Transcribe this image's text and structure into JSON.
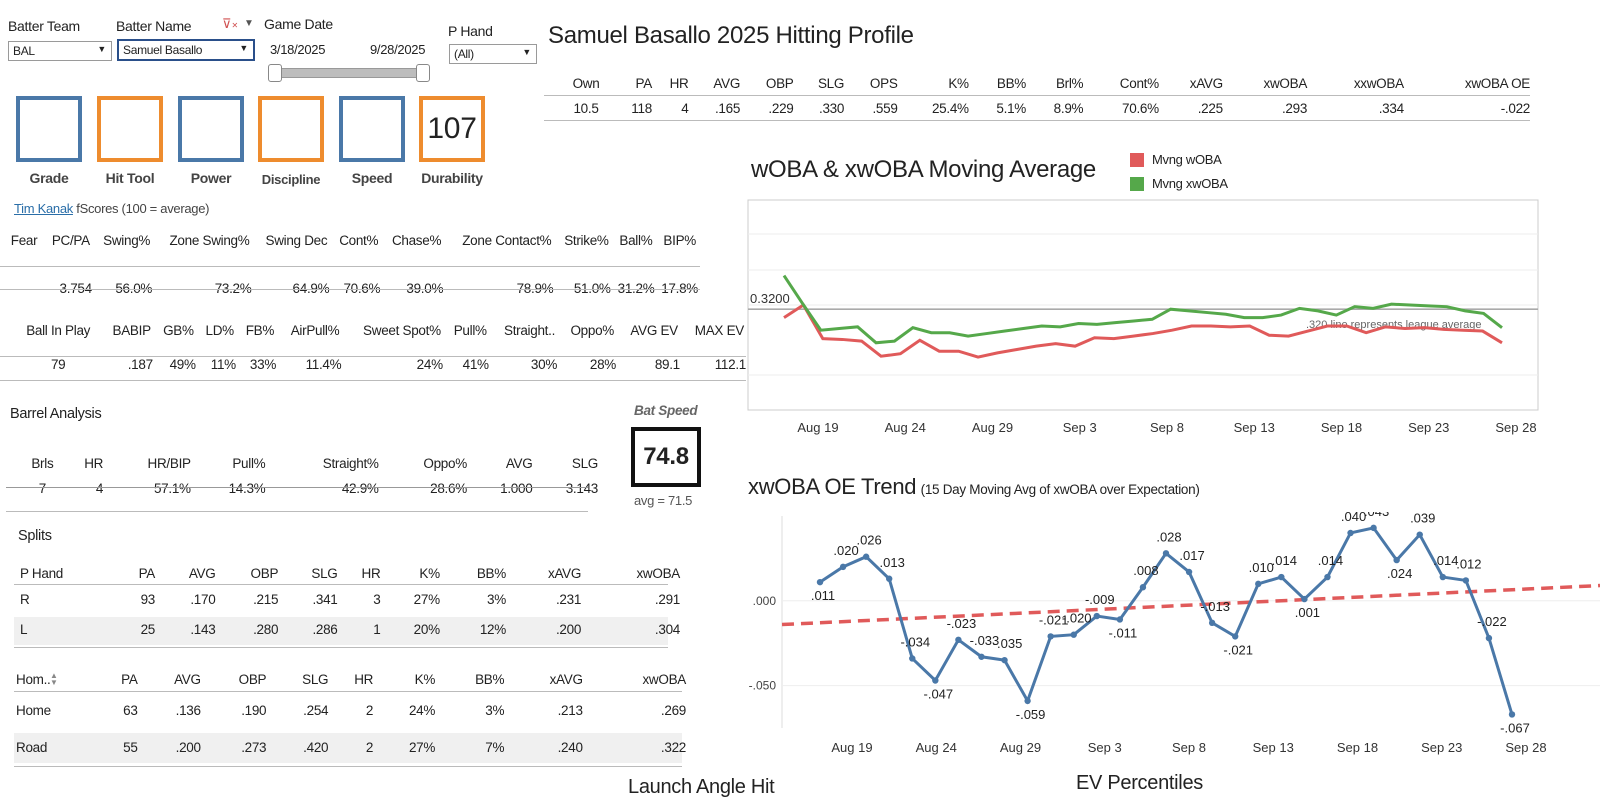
{
  "filters": {
    "batter_team_label": "Batter Team",
    "batter_team_value": "BAL",
    "batter_name_label": "Batter Name",
    "batter_name_value": "Samuel Basallo",
    "game_date_label": "Game Date",
    "date_start": "3/18/2025",
    "date_end": "9/28/2025",
    "p_hand_label": "P Hand",
    "p_hand_value": "(All)",
    "filter_clear_icon": "filter-clear-icon"
  },
  "grade_boxes": [
    {
      "label": "Grade",
      "value": ""
    },
    {
      "label": "Hit Tool",
      "value": ""
    },
    {
      "label": "Power",
      "value": ""
    },
    {
      "label": "Discipline",
      "value": ""
    },
    {
      "label": "Speed",
      "value": ""
    },
    {
      "label": "Durability",
      "value": "107"
    }
  ],
  "profile": {
    "title": "Samuel Basallo 2025 Hitting Profile",
    "headers": [
      "Own",
      "PA",
      "HR",
      "AVG",
      "OBP",
      "SLG",
      "OPS",
      "K%",
      "BB%",
      "Brl%",
      "Cont%",
      "xAVG",
      "xwOBA",
      "xxwOBA",
      "xwOBA OE"
    ],
    "values": [
      "10.5",
      "118",
      "4",
      ".165",
      ".229",
      ".330",
      ".559",
      "25.4%",
      "5.1%",
      "8.9%",
      "70.6%",
      ".225",
      ".293",
      ".334",
      "-.022"
    ]
  },
  "fscores": {
    "link": "Tim Kanak",
    "caption": "fScores (100 = average)",
    "headers": [
      "Fear",
      "PC/PA",
      "Swing%",
      "Zone Swing%",
      "Swing Dec",
      "Cont%",
      "Chase%",
      "Zone Contact%",
      "Strike%",
      "Ball%",
      "BIP%"
    ],
    "values": [
      "",
      "3.754",
      "56.0%",
      "73.2%",
      "64.9%",
      "70.6%",
      "39.0%",
      "78.9%",
      "51.0%",
      "31.2%",
      "17.8%"
    ]
  },
  "bip": {
    "headers": [
      "Ball In Play",
      "BABIP",
      "GB%",
      "LD%",
      "FB%",
      "AirPull%",
      "Sweet Spot%",
      "Pull%",
      "Straight..",
      "Oppo%",
      "AVG EV",
      "MAX EV"
    ],
    "values": [
      "79",
      ".187",
      "49%",
      "11%",
      "33%",
      "11.4%",
      "24%",
      "41%",
      "30%",
      "28%",
      "89.1",
      "112.1"
    ]
  },
  "barrel": {
    "title": "Barrel Analysis",
    "headers": [
      "Brls",
      "HR",
      "HR/BIP",
      "Pull%",
      "Straight%",
      "Oppo%",
      "AVG",
      "SLG"
    ],
    "values": [
      "7",
      "4",
      "57.1%",
      "14.3%",
      "42.9%",
      "28.6%",
      "1.000",
      "3.143"
    ]
  },
  "bat_speed": {
    "label": "Bat Speed",
    "value": "74.8",
    "avg": "avg = 71.5"
  },
  "splits": {
    "title": "Splits",
    "hand_headers": [
      "P Hand",
      "PA",
      "AVG",
      "OBP",
      "SLG",
      "HR",
      "K%",
      "BB%",
      "xAVG",
      "xwOBA"
    ],
    "hand_rows": [
      [
        "R",
        "93",
        ".170",
        ".215",
        ".341",
        "3",
        "27%",
        "3%",
        ".231",
        ".291"
      ],
      [
        "L",
        "25",
        ".143",
        ".280",
        ".286",
        "1",
        "20%",
        "12%",
        ".200",
        ".304"
      ]
    ],
    "home_headers": [
      "Hom..",
      "PA",
      "AVG",
      "OBP",
      "SLG",
      "HR",
      "K%",
      "BB%",
      "xAVG",
      "xwOBA"
    ],
    "home_rows": [
      [
        "Home",
        "63",
        ".136",
        ".190",
        ".254",
        "2",
        "24%",
        "3%",
        ".213",
        ".269"
      ],
      [
        "Road",
        "55",
        ".200",
        ".273",
        ".420",
        "2",
        "27%",
        "7%",
        ".240",
        ".322"
      ]
    ]
  },
  "chart_data": [
    {
      "type": "line",
      "title": "wOBA & xwOBA Moving Average",
      "x_ticks": [
        "Aug 19",
        "Aug 24",
        "Aug 29",
        "Sep 3",
        "Sep 8",
        "Sep 13",
        "Sep 18",
        "Sep 23",
        "Sep 28"
      ],
      "reference": {
        "value": 0.32,
        "label": "0.3200",
        "note": ".320 line represents league average"
      },
      "ylim": [
        0.2,
        0.45
      ],
      "legend_position": "top-right",
      "series": [
        {
          "name": "Mvng wOBA",
          "color": "#e05a5a",
          "values": [
            0.31,
            0.325,
            0.285,
            0.284,
            0.282,
            0.264,
            0.267,
            0.283,
            0.27,
            0.27,
            0.263,
            0.268,
            0.272,
            0.276,
            0.279,
            0.276,
            0.286,
            0.285,
            0.288,
            0.291,
            0.295,
            0.3,
            0.3,
            0.299,
            0.3,
            0.289,
            0.288,
            0.294,
            0.3,
            0.3,
            0.292,
            0.299,
            0.297,
            0.298,
            0.296,
            0.295,
            0.294,
            0.28
          ]
        },
        {
          "name": "Mvng xwOBA",
          "color": "#55a84a",
          "values": [
            0.36,
            0.327,
            0.295,
            0.297,
            0.299,
            0.28,
            0.282,
            0.298,
            0.292,
            0.292,
            0.288,
            0.291,
            0.294,
            0.297,
            0.3,
            0.299,
            0.303,
            0.302,
            0.304,
            0.306,
            0.308,
            0.32,
            0.318,
            0.316,
            0.314,
            0.31,
            0.31,
            0.313,
            0.321,
            0.318,
            0.313,
            0.323,
            0.321,
            0.326,
            0.325,
            0.324,
            0.323,
            0.318,
            0.315,
            0.298
          ]
        }
      ]
    },
    {
      "type": "line",
      "title": "xwOBA OE Trend",
      "subtitle": "(15 Day Moving Avg of xwOBA over Expectation)",
      "x_ticks": [
        "Aug 19",
        "Aug 24",
        "Aug 29",
        "Sep 3",
        "Sep 8",
        "Sep 13",
        "Sep 18",
        "Sep 23",
        "Sep 28"
      ],
      "y_ticks": [
        ".000",
        "-.050"
      ],
      "ylim": [
        -0.075,
        0.05
      ],
      "series": [
        {
          "color": "#4a78a8",
          "values": [
            0.011,
            0.02,
            0.026,
            0.013,
            -0.034,
            -0.047,
            -0.023,
            -0.033,
            -0.035,
            -0.059,
            -0.021,
            -0.02,
            -0.009,
            -0.011,
            0.008,
            0.028,
            0.017,
            -0.013,
            -0.021,
            0.01,
            0.014,
            0.001,
            0.014,
            0.04,
            0.043,
            0.024,
            0.039,
            0.014,
            0.012,
            -0.022,
            -0.067
          ],
          "labels": [
            ".011",
            ".020",
            ".026",
            ".013",
            "-.034",
            "-.047",
            "-.023",
            "-.033",
            "-.035",
            "-.059",
            "-.021",
            "-.020",
            "-.009",
            "-.011",
            ".008",
            ".028",
            ".017",
            "-.013",
            "-.021",
            ".010",
            ".014",
            ".001",
            ".014",
            ".040",
            ".043",
            ".024",
            ".039",
            ".014",
            ".012",
            "-.022",
            "-.067"
          ]
        }
      ],
      "trendline": {
        "color": "#e05a5a",
        "start": -0.014,
        "end": 0.009
      }
    }
  ],
  "footer_partial": {
    "left": "Launch Angle Hit",
    "right": "EV Percentiles"
  }
}
